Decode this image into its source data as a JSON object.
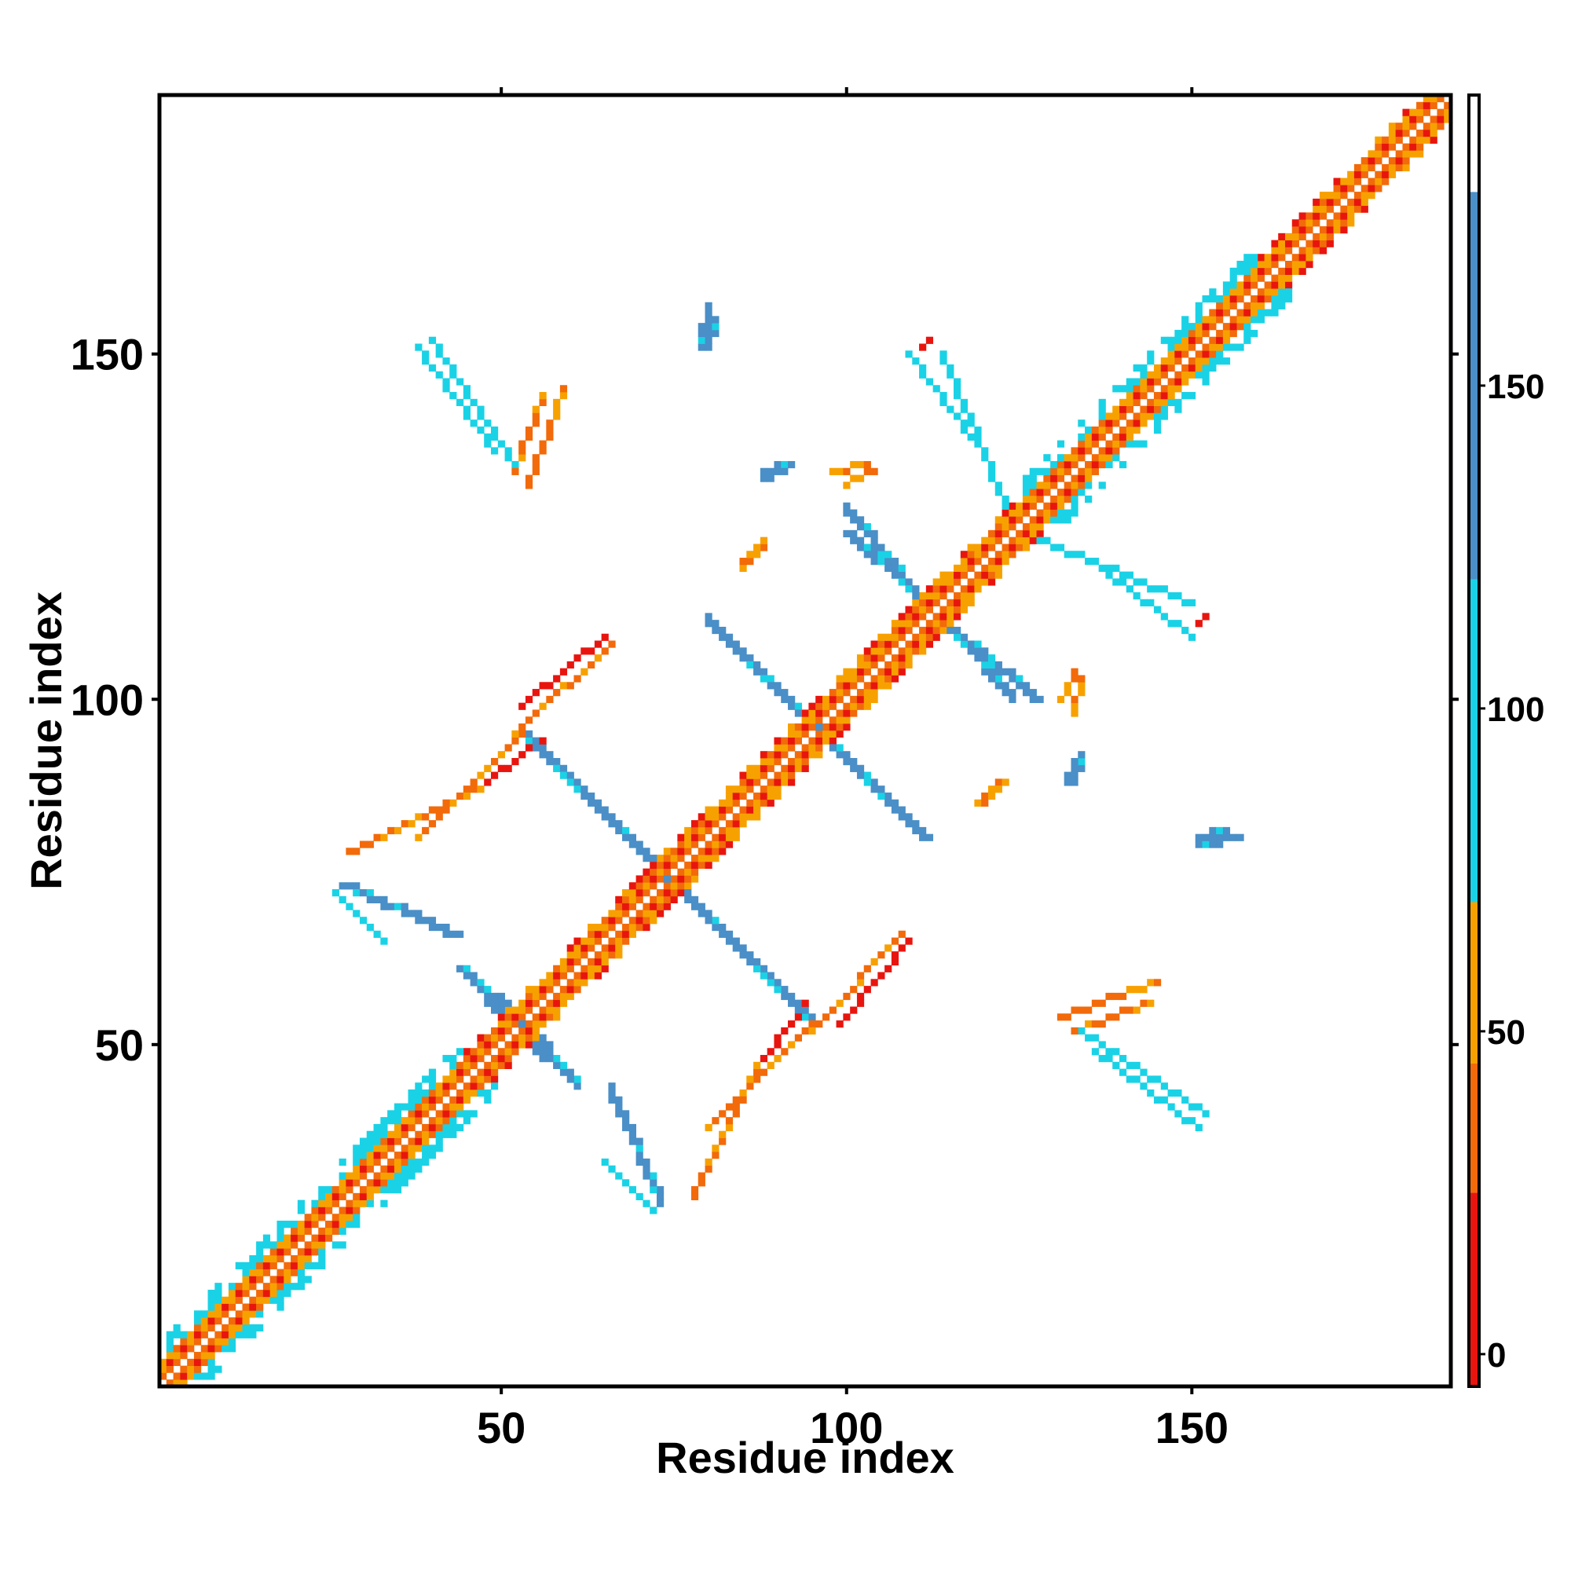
{
  "chart_data": {
    "type": "heatmap",
    "title": "",
    "xlabel": "Residue index",
    "ylabel": "Residue index",
    "xlim": [
      1,
      187
    ],
    "ylim": [
      1,
      187
    ],
    "x_ticks": [
      50,
      100,
      150
    ],
    "y_ticks": [
      50,
      100,
      150
    ],
    "x_tick_labels": [
      "50",
      "100",
      "150"
    ],
    "y_tick_labels": [
      "50",
      "100",
      "150"
    ],
    "grid": false,
    "legend": "colorbar-right",
    "colorbar": {
      "range": [
        -5,
        195
      ],
      "ticks": [
        0,
        50,
        100,
        150
      ],
      "tick_labels": [
        "0",
        "50",
        "100",
        "150"
      ],
      "bands": [
        {
          "from": -5,
          "to": 25,
          "color": "#e8150f"
        },
        {
          "from": 25,
          "to": 45,
          "color": "#f26a0a"
        },
        {
          "from": 45,
          "to": 70,
          "color": "#f7a100"
        },
        {
          "from": 70,
          "to": 120,
          "color": "#1ad2e6"
        },
        {
          "from": 120,
          "to": 180,
          "color": "#4a8fc7"
        },
        {
          "from": 180,
          "to": 195,
          "color": "#ffffff"
        }
      ]
    },
    "color_scale": {
      "red": "#e8150f",
      "dark_orange": "#f26a0a",
      "orange": "#f7a100",
      "cyan": "#1ad2e6",
      "steel_blue": "#4a8fc7"
    },
    "segments": [
      {
        "x": [
          54,
          93
        ],
        "y": [
          94,
          55
        ],
        "value": 165
      },
      {
        "x": [
          75,
          94
        ],
        "y": [
          73,
          54
        ],
        "value": 165
      },
      {
        "x": [
          27,
          43
        ],
        "y": [
          73,
          66
        ],
        "value": 150
      },
      {
        "x": [
          44,
          53
        ],
        "y": [
          61,
          53
        ],
        "value": 165
      },
      {
        "x": [
          53,
          60
        ],
        "y": [
          51,
          45
        ],
        "value": 165
      },
      {
        "x": [
          65,
          72
        ],
        "y": [
          33,
          26
        ],
        "value": 110
      },
      {
        "x": [
          81,
          94
        ],
        "y": [
          110,
          97
        ],
        "value": 165
      },
      {
        "x": [
          95,
          111
        ],
        "y": [
          96,
          80
        ],
        "value": 165
      },
      {
        "x": [
          100,
          110
        ],
        "y": [
          124,
          115
        ],
        "value": 165
      },
      {
        "x": [
          118,
          127
        ],
        "y": [
          108,
          100
        ],
        "value": 165
      },
      {
        "x": [
          38,
          49
        ],
        "y": [
          151,
          136
        ],
        "value": 110
      },
      {
        "x": [
          109,
          121
        ],
        "y": [
          150,
          134
        ],
        "value": 110
      },
      {
        "x": [
          128,
          150
        ],
        "y": [
          123,
          114
        ],
        "value": 110
      },
      {
        "x": [
          134,
          152
        ],
        "y": [
          52,
          40
        ],
        "value": 110
      },
      {
        "x": [
          38,
          53
        ],
        "y": [
          80,
          95
        ],
        "value": 35
      },
      {
        "x": [
          52,
          66
        ],
        "y": [
          95,
          108
        ],
        "value": 35
      },
      {
        "x": [
          78,
          87
        ],
        "y": [
          28,
          47
        ],
        "value": 35
      },
      {
        "x": [
          88,
          94
        ],
        "y": [
          48,
          56
        ],
        "value": 12
      },
      {
        "x": [
          99,
          109
        ],
        "y": [
          53,
          65
        ],
        "value": 12
      },
      {
        "x": [
          85,
          88
        ],
        "y": [
          119,
          122
        ],
        "value": 35
      },
      {
        "x": [
          120,
          123
        ],
        "y": [
          85,
          88
        ],
        "value": 35
      },
      {
        "x": [
          98,
          103
        ],
        "y": [
          133,
          134
        ],
        "value": 35
      },
      {
        "x": [
          52,
          56
        ],
        "y": [
          133,
          144
        ],
        "value": 40
      },
      {
        "x": [
          131,
          145
        ],
        "y": [
          54,
          59
        ],
        "value": 40
      },
      {
        "x": [
          131,
          133
        ],
        "y": [
          100,
          104
        ],
        "value": 40
      },
      {
        "x": [
          111,
          112
        ],
        "y": [
          151,
          152
        ],
        "value": 12
      },
      {
        "x": [
          151,
          152
        ],
        "y": [
          111,
          112
        ],
        "value": 12
      },
      {
        "x": [
          79,
          80
        ],
        "y": [
          151,
          155
        ],
        "value": 165
      },
      {
        "x": [
          88,
          91
        ],
        "y": [
          133,
          134
        ],
        "value": 165
      },
      {
        "x": [
          132,
          133
        ],
        "y": [
          88,
          91
        ],
        "value": 165
      },
      {
        "x": [
          152,
          156
        ],
        "y": [
          79,
          80
        ],
        "value": 165
      }
    ]
  }
}
